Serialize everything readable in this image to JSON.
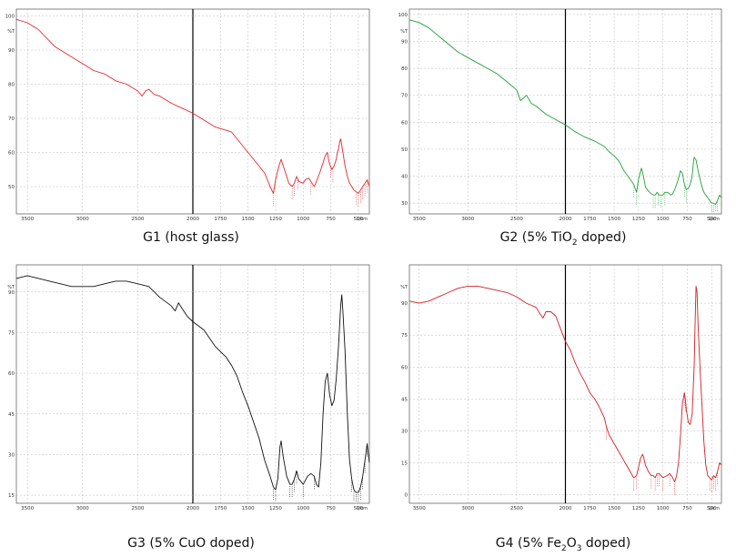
{
  "chart_data": [
    {
      "type": "line",
      "caption": "G1 (host glass)",
      "y_unit": "%T",
      "x_unit": "1/cm",
      "color": "#e8262b",
      "xlim": [
        3600,
        400
      ],
      "ylim": [
        42,
        102
      ],
      "xticks": [
        "3500",
        "3000",
        "2500",
        "2000",
        "1750",
        "1500",
        "1250",
        "1000",
        "750",
        "500"
      ],
      "yticks": [
        "100",
        "90",
        "80",
        "70",
        "60",
        "50"
      ],
      "x": [
        3600,
        3500,
        3400,
        3250,
        3100,
        3000,
        2900,
        2800,
        2700,
        2600,
        2500,
        2460,
        2430,
        2400,
        2350,
        2300,
        2200,
        2100,
        2000,
        1900,
        1800,
        1750,
        1700,
        1650,
        1600,
        1550,
        1500,
        1450,
        1400,
        1350,
        1300,
        1270,
        1250,
        1220,
        1200,
        1180,
        1150,
        1130,
        1100,
        1080,
        1060,
        1040,
        1000,
        980,
        950,
        930,
        900,
        880,
        850,
        820,
        800,
        780,
        770,
        760,
        740,
        720,
        700,
        690,
        680,
        670,
        660,
        640,
        620,
        600,
        580,
        560,
        540,
        520,
        500,
        480,
        460,
        440,
        420,
        400
      ],
      "y": [
        99,
        98,
        96,
        91,
        88,
        86,
        84,
        83,
        81,
        80,
        78,
        76.5,
        78,
        78.5,
        77,
        76.5,
        74.5,
        73,
        71.5,
        69.5,
        67.5,
        67,
        66.5,
        66,
        64,
        62,
        60,
        58,
        56,
        54,
        50,
        48,
        52,
        56,
        58,
        56,
        53,
        51,
        50,
        51,
        53,
        51.5,
        51,
        52,
        52.5,
        51.5,
        50,
        51.5,
        54,
        57,
        59,
        60,
        58,
        56.5,
        55,
        56,
        58,
        60,
        61,
        63,
        64,
        60,
        56,
        53,
        51,
        50,
        49,
        48.5,
        48,
        49,
        50,
        51,
        52,
        50
      ],
      "markers": [
        1270,
        1100,
        1080,
        1050,
        930,
        750,
        730,
        520,
        500,
        480,
        460,
        440,
        420
      ]
    },
    {
      "type": "line",
      "caption": "G2 (5% TiO2 doped)",
      "y_unit": "%T",
      "x_unit": "1/cm",
      "color": "#21a038",
      "xlim": [
        3600,
        400
      ],
      "ylim": [
        26,
        102
      ],
      "xticks": [
        "3500",
        "3000",
        "2500",
        "2000",
        "1750",
        "1500",
        "1250",
        "1000",
        "750",
        "500"
      ],
      "yticks": [
        "100",
        "90",
        "80",
        "70",
        "60",
        "50",
        "40",
        "30"
      ],
      "x": [
        3600,
        3500,
        3400,
        3300,
        3200,
        3100,
        3000,
        2900,
        2800,
        2700,
        2600,
        2500,
        2460,
        2430,
        2400,
        2350,
        2300,
        2200,
        2100,
        2000,
        1900,
        1800,
        1700,
        1650,
        1600,
        1550,
        1500,
        1450,
        1400,
        1350,
        1300,
        1270,
        1250,
        1220,
        1200,
        1180,
        1150,
        1120,
        1100,
        1080,
        1060,
        1040,
        1000,
        980,
        950,
        920,
        900,
        880,
        850,
        820,
        800,
        780,
        760,
        740,
        720,
        700,
        690,
        680,
        660,
        640,
        620,
        600,
        580,
        560,
        540,
        520,
        500,
        480,
        460,
        440,
        420,
        400
      ],
      "y": [
        98,
        97,
        95,
        92,
        89,
        86,
        84,
        82,
        80,
        78,
        75,
        72,
        68,
        69,
        70,
        67,
        66,
        63,
        61,
        59,
        56.5,
        54.5,
        53,
        52,
        51,
        49,
        47.5,
        45.5,
        42,
        39.5,
        37,
        34,
        39,
        43,
        40,
        36,
        34.5,
        33.5,
        33,
        33,
        34,
        33,
        33,
        34,
        34,
        33,
        33.5,
        35,
        38,
        42,
        41,
        37,
        35,
        35.5,
        37,
        40,
        44,
        47,
        46,
        42,
        39,
        36,
        34,
        33,
        32,
        31,
        30,
        30,
        29.5,
        31,
        33,
        32
      ],
      "markers": [
        1300,
        1270,
        1100,
        1080,
        1050,
        1020,
        980,
        780,
        760,
        500,
        480,
        460,
        440
      ]
    },
    {
      "type": "line",
      "caption": "G3 (5% CuO doped)",
      "y_unit": "%T",
      "x_unit": "1/cm",
      "color": "#111111",
      "xlim": [
        3600,
        400
      ],
      "ylim": [
        12,
        100
      ],
      "xticks": [
        "3500",
        "3000",
        "2500",
        "2000",
        "1750",
        "1500",
        "1250",
        "1000",
        "750",
        "500"
      ],
      "yticks": [
        "90",
        "75",
        "60",
        "45",
        "30",
        "15"
      ],
      "x": [
        3600,
        3500,
        3400,
        3300,
        3200,
        3100,
        3000,
        2900,
        2800,
        2700,
        2600,
        2500,
        2400,
        2300,
        2200,
        2160,
        2130,
        2100,
        2050,
        2000,
        1900,
        1850,
        1800,
        1750,
        1700,
        1650,
        1600,
        1550,
        1500,
        1450,
        1400,
        1350,
        1300,
        1270,
        1250,
        1230,
        1210,
        1200,
        1180,
        1150,
        1120,
        1100,
        1080,
        1060,
        1040,
        1000,
        960,
        930,
        900,
        880,
        860,
        840,
        820,
        800,
        780,
        760,
        740,
        720,
        700,
        680,
        660,
        650,
        640,
        620,
        600,
        580,
        560,
        540,
        520,
        500,
        480,
        460,
        440,
        420,
        400
      ],
      "y": [
        95,
        96,
        95,
        94,
        93,
        92,
        92,
        92,
        93,
        94,
        94,
        93,
        92,
        88,
        85,
        83,
        86,
        84,
        81,
        79,
        76,
        73,
        70,
        68,
        66,
        63,
        59,
        53,
        48,
        42,
        36,
        28,
        22,
        18,
        17,
        21,
        33,
        35,
        29,
        22,
        19,
        19,
        21,
        24,
        21,
        19,
        22,
        23,
        22,
        19,
        18,
        27,
        45,
        57,
        60,
        52,
        48,
        50,
        58,
        70,
        85,
        89,
        83,
        68,
        45,
        28,
        21,
        17,
        16,
        16,
        18,
        22,
        28,
        34,
        27
      ],
      "markers": [
        1270,
        1250,
        1120,
        1100,
        1080,
        1060,
        1000,
        900,
        560,
        540,
        520,
        500,
        480,
        460,
        440,
        420
      ]
    },
    {
      "type": "line",
      "caption": "G4 (5% Fe2O3 doped)",
      "y_unit": "%T",
      "x_unit": "1/cm",
      "color": "#d31f25",
      "xlim": [
        3600,
        400
      ],
      "ylim": [
        -4,
        108
      ],
      "xticks": [
        "3500",
        "3000",
        "2500",
        "2000",
        "1750",
        "1500",
        "1250",
        "1000",
        "750",
        "500"
      ],
      "yticks": [
        "90",
        "75",
        "60",
        "45",
        "30",
        "15",
        "0"
      ],
      "x": [
        3600,
        3500,
        3400,
        3300,
        3200,
        3100,
        3000,
        2900,
        2800,
        2700,
        2600,
        2500,
        2400,
        2300,
        2260,
        2230,
        2200,
        2150,
        2100,
        2050,
        2000,
        1950,
        1900,
        1850,
        1800,
        1750,
        1700,
        1650,
        1600,
        1580,
        1550,
        1500,
        1450,
        1400,
        1350,
        1300,
        1270,
        1250,
        1230,
        1210,
        1200,
        1180,
        1150,
        1120,
        1100,
        1080,
        1060,
        1040,
        1000,
        960,
        930,
        900,
        880,
        860,
        840,
        820,
        800,
        780,
        770,
        760,
        740,
        720,
        700,
        680,
        670,
        660,
        650,
        640,
        620,
        600,
        580,
        560,
        540,
        520,
        500,
        480,
        460,
        440,
        420,
        400
      ],
      "y": [
        91,
        90,
        91,
        93,
        95,
        97,
        98,
        98,
        97,
        96,
        95,
        93,
        90,
        88,
        85,
        83,
        86,
        86,
        84,
        78,
        72,
        68,
        62,
        57,
        53,
        48,
        45,
        41,
        36,
        32,
        28,
        24,
        20,
        16,
        12,
        8,
        9,
        13,
        17,
        19,
        18,
        14,
        11,
        9,
        9,
        8,
        10,
        10,
        8,
        9,
        10,
        8,
        6,
        9,
        15,
        28,
        43,
        48,
        45,
        40,
        34,
        33,
        38,
        60,
        82,
        98,
        95,
        80,
        60,
        42,
        25,
        14,
        9,
        8,
        7,
        9,
        8,
        11,
        15,
        14
      ],
      "markers": [
        1580,
        1300,
        1270,
        1120,
        1080,
        1060,
        1040,
        1000,
        930,
        880,
        780,
        770,
        520,
        500,
        480,
        460,
        440
      ]
    }
  ]
}
